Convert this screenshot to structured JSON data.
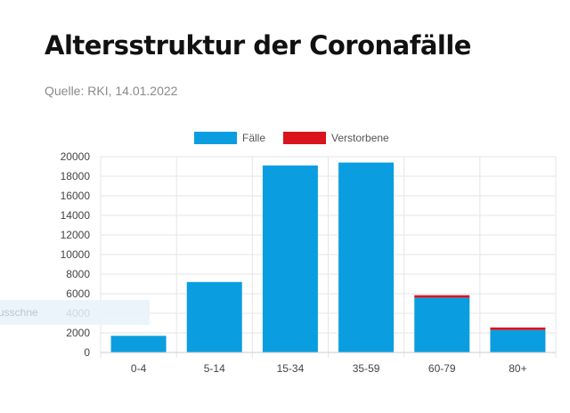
{
  "header": {
    "title": "Altersstruktur der Coronafälle",
    "source": "Quelle: RKI, 14.01.2022"
  },
  "overlay": {
    "text": "usschne"
  },
  "chart_data": {
    "type": "bar",
    "stacked": true,
    "categories": [
      "0-4",
      "5-14",
      "15-34",
      "35-59",
      "60-79",
      "80+"
    ],
    "series": [
      {
        "name": "Fälle",
        "color": "#0a9ee0",
        "values": [
          1700,
          7200,
          19100,
          19400,
          5600,
          2300
        ]
      },
      {
        "name": "Verstorbene",
        "color": "#d9141c",
        "values": [
          0,
          0,
          0,
          0,
          250,
          250
        ]
      }
    ],
    "ylim": [
      0,
      20000
    ],
    "yticks": [
      0,
      2000,
      4000,
      6000,
      8000,
      10000,
      12000,
      14000,
      16000,
      18000,
      20000
    ],
    "grid": true,
    "legend": "top-center"
  }
}
